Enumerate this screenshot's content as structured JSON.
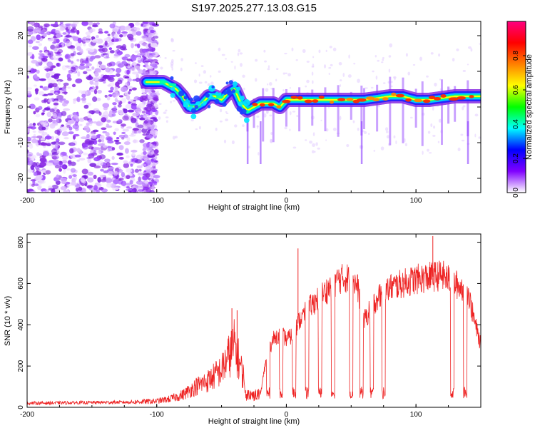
{
  "title": "S197.2025.277.13.03.G15",
  "chart_data": [
    {
      "type": "heatmap",
      "xlabel": "Height of straight line (km)",
      "ylabel": "Frequency (Hz)",
      "xlim": [
        -200,
        150
      ],
      "ylim": [
        -24,
        24
      ],
      "x_ticks": [
        -200,
        -100,
        0,
        100
      ],
      "x_tick_labels": [
        "-200",
        "-100",
        "0",
        "100"
      ],
      "y_ticks": [
        -20,
        -10,
        0,
        10,
        20
      ],
      "y_tick_labels": [
        "-20",
        "-10",
        "0",
        "10",
        "20"
      ],
      "ridge": {
        "x": [
          -108,
          -100,
          -95,
          -90,
          -85,
          -80,
          -75,
          -70,
          -65,
          -60,
          -55,
          -50,
          -45,
          -40,
          -35,
          -30,
          -25,
          -20,
          -15,
          -10,
          -5,
          0,
          10,
          20,
          30,
          40,
          50,
          60,
          70,
          80,
          90,
          95,
          100,
          110,
          120,
          130,
          140,
          150
        ],
        "y": [
          7,
          7,
          7,
          6,
          5,
          3,
          0,
          0,
          1,
          3,
          3,
          2,
          4,
          5,
          1,
          -1,
          0,
          1,
          1,
          1,
          0,
          2,
          2,
          2,
          2,
          2,
          2,
          2,
          2.5,
          3,
          3,
          2.5,
          2,
          2,
          2.5,
          3,
          3,
          3
        ]
      },
      "colorbar": {
        "label": "Normalized spectral amplitude",
        "range": [
          0,
          1
        ],
        "ticks": [
          0.0,
          0.2,
          0.4,
          0.6,
          0.8
        ],
        "tick_labels": [
          "0.0",
          "0.2",
          "0.4",
          "0.6",
          "0.8"
        ],
        "colors": [
          "#ffffff",
          "#8000ff",
          "#0000ff",
          "#00ffff",
          "#00ff00",
          "#ffff00",
          "#ff8000",
          "#ff0000",
          "#ff0080"
        ]
      }
    },
    {
      "type": "line",
      "xlabel": "Height of straight line (km)",
      "ylabel": "SNR (10 * v/v)",
      "xlim": [
        -200,
        150
      ],
      "ylim": [
        0,
        840
      ],
      "x_ticks": [
        -200,
        -100,
        0,
        100
      ],
      "x_tick_labels": [
        "-200",
        "-100",
        "0",
        "100"
      ],
      "y_ticks": [
        0,
        200,
        400,
        600,
        800
      ],
      "y_tick_labels": [
        "0",
        "200",
        "400",
        "600",
        "800"
      ],
      "color": "#ee2222",
      "envelope": {
        "x": [
          -200,
          -120,
          -100,
          -90,
          -80,
          -70,
          -60,
          -50,
          -40,
          -30,
          -20,
          -15,
          -10,
          -5,
          0,
          5,
          10,
          20,
          30,
          40,
          50,
          55,
          60,
          70,
          80,
          90,
          100,
          110,
          120,
          130,
          140,
          145,
          150
        ],
        "y": [
          20,
          25,
          30,
          40,
          60,
          100,
          130,
          180,
          300,
          80,
          60,
          260,
          330,
          360,
          330,
          350,
          420,
          500,
          560,
          620,
          630,
          580,
          420,
          530,
          580,
          600,
          620,
          630,
          640,
          600,
          560,
          420,
          300
        ]
      },
      "spikes": [
        {
          "x": 9,
          "y": 770
        },
        {
          "x": 113,
          "y": 830
        },
        {
          "x": -42,
          "y": 480
        },
        {
          "x": -38,
          "y": 470
        }
      ],
      "dropouts": [
        -14,
        -4,
        6,
        16,
        26,
        36,
        50,
        58,
        66,
        75,
        128,
        138
      ]
    }
  ]
}
